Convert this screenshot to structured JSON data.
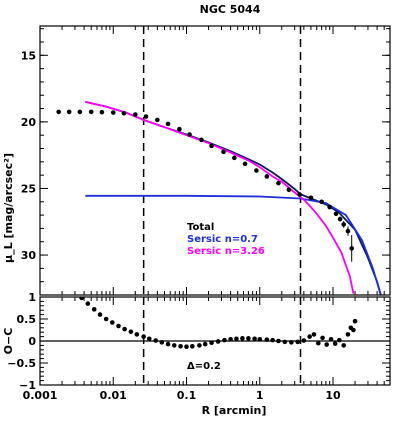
{
  "chart_data": [
    {
      "type": "scatter",
      "title": "NGC 5044",
      "xlabel": "",
      "ylabel": "μ_L [mag/arcsec²]",
      "xscale": "log",
      "xlim": [
        0.001,
        60
      ],
      "ylim": [
        33.0,
        12.8
      ],
      "y_inverted": true,
      "xticks": [
        0.001,
        0.01,
        0.1,
        1,
        10
      ],
      "xtick_labels": [
        "0.001",
        "0.01",
        "0.1",
        "1",
        "10"
      ],
      "yticks": [
        15,
        20,
        25,
        30
      ],
      "ytick_labels": [
        "15",
        "20",
        "25",
        "30"
      ],
      "vlines": [
        0.026,
        3.6
      ],
      "colors": {
        "total": "#0a1a5c",
        "sersic1": "#1f2fdb",
        "sersic2": "#ff00ff",
        "data": "#000000"
      },
      "legend": {
        "placement": "bottom-center",
        "entries": [
          "Total",
          "Sersic n=0.7",
          "Sersic n=3.26"
        ]
      },
      "series": [
        {
          "name": "Total",
          "kind": "line",
          "x": [
            0.00416,
            0.008,
            0.015,
            0.026,
            0.05,
            0.1,
            0.2,
            0.4,
            0.7,
            1.0,
            1.5,
            2.0,
            2.5,
            3.0,
            3.6,
            5.0,
            8.0,
            12.0,
            20.0,
            30.0,
            40.0,
            45.0
          ],
          "y": [
            18.5,
            18.85,
            19.3,
            19.85,
            20.4,
            20.95,
            21.55,
            22.2,
            22.8,
            23.2,
            23.8,
            24.3,
            24.7,
            25.05,
            25.43,
            25.75,
            26.2,
            26.8,
            28.1,
            30.2,
            32.0,
            33.0
          ]
        },
        {
          "name": "Sersic n=0.7",
          "kind": "line",
          "x": [
            0.00416,
            0.01,
            0.1,
            1.0,
            3.6,
            8.0,
            15.0,
            25.0,
            35.0,
            45.0
          ],
          "y": [
            25.55,
            25.55,
            25.55,
            25.6,
            25.75,
            26.1,
            27.0,
            28.9,
            31.0,
            33.0
          ]
        },
        {
          "name": "Sersic n=3.26",
          "kind": "line",
          "x": [
            0.00416,
            0.008,
            0.015,
            0.026,
            0.05,
            0.1,
            0.2,
            0.4,
            0.7,
            1.0,
            1.5,
            2.0,
            3.0,
            4.0,
            5.0,
            6.0,
            8.0,
            10.0,
            13.0,
            17.0,
            19.0
          ],
          "y": [
            18.5,
            18.85,
            19.3,
            19.85,
            20.4,
            21.0,
            21.6,
            22.3,
            22.9,
            23.4,
            24.1,
            24.5,
            25.3,
            25.85,
            26.4,
            26.9,
            27.8,
            28.7,
            29.8,
            31.6,
            32.9
          ]
        },
        {
          "name": "Data",
          "kind": "points",
          "x": [
            0.0018,
            0.0025,
            0.0035,
            0.005,
            0.007,
            0.01,
            0.014,
            0.02,
            0.028,
            0.04,
            0.056,
            0.08,
            0.11,
            0.16,
            0.22,
            0.32,
            0.45,
            0.63,
            0.9,
            1.25,
            1.8,
            2.5,
            3.5,
            5.0,
            7.0,
            9.0,
            11.0,
            12.5,
            14.0,
            16.0,
            18.0
          ],
          "y": [
            19.25,
            19.25,
            19.25,
            19.25,
            19.27,
            19.3,
            19.35,
            19.45,
            19.6,
            19.85,
            20.15,
            20.55,
            20.95,
            21.35,
            21.8,
            22.25,
            22.7,
            23.15,
            23.65,
            24.1,
            24.6,
            25.1,
            25.45,
            25.7,
            26.0,
            26.4,
            26.9,
            27.3,
            27.7,
            28.2,
            29.5
          ],
          "yerr": [
            0.02,
            0.02,
            0.02,
            0.02,
            0.02,
            0.02,
            0.02,
            0.02,
            0.02,
            0.02,
            0.02,
            0.02,
            0.02,
            0.02,
            0.02,
            0.02,
            0.02,
            0.02,
            0.03,
            0.03,
            0.04,
            0.05,
            0.06,
            0.08,
            0.1,
            0.12,
            0.15,
            0.18,
            0.25,
            0.35,
            1.0
          ]
        }
      ]
    },
    {
      "type": "scatter",
      "xlabel": "R [arcmin]",
      "ylabel": "O−C",
      "xscale": "log",
      "xlim": [
        0.001,
        60
      ],
      "ylim": [
        -1,
        1
      ],
      "xticks": [
        0.001,
        0.01,
        0.1,
        1,
        10
      ],
      "xtick_labels": [
        "0.001",
        "0.01",
        "0.1",
        "1",
        "10"
      ],
      "yticks": [
        -1,
        -0.5,
        0,
        0.5,
        1
      ],
      "ytick_labels": [
        "−1",
        "−0.5",
        "0",
        "0.5",
        "1"
      ],
      "vlines": [
        0.026,
        3.6
      ],
      "hline": 0,
      "annotation": "Δ=0.2",
      "series": [
        {
          "name": "Residuals",
          "kind": "points",
          "x": [
            0.0037,
            0.0045,
            0.0055,
            0.0066,
            0.008,
            0.0097,
            0.0118,
            0.0143,
            0.0174,
            0.021,
            0.026,
            0.031,
            0.038,
            0.046,
            0.056,
            0.068,
            0.083,
            0.1,
            0.12,
            0.15,
            0.18,
            0.22,
            0.27,
            0.33,
            0.4,
            0.48,
            0.58,
            0.7,
            0.85,
            1.0,
            1.25,
            1.5,
            1.8,
            2.2,
            2.7,
            3.3,
            4.0,
            4.8,
            5.5,
            6.3,
            7.2,
            8.2,
            9.4,
            10.7,
            12.2,
            14.0,
            16.0,
            17.5,
            19.0,
            20.0
          ],
          "y": [
            0.98,
            0.85,
            0.72,
            0.6,
            0.5,
            0.42,
            0.34,
            0.27,
            0.21,
            0.15,
            0.1,
            0.05,
            0.01,
            -0.03,
            -0.07,
            -0.1,
            -0.12,
            -0.13,
            -0.12,
            -0.1,
            -0.07,
            -0.04,
            -0.01,
            0.02,
            0.04,
            0.05,
            0.06,
            0.06,
            0.05,
            0.04,
            0.03,
            0.02,
            0.0,
            -0.02,
            -0.03,
            -0.02,
            0.01,
            0.1,
            0.15,
            -0.05,
            0.07,
            -0.08,
            0.04,
            -0.06,
            0.02,
            -0.1,
            0.15,
            0.3,
            0.25,
            0.45
          ]
        }
      ]
    }
  ]
}
